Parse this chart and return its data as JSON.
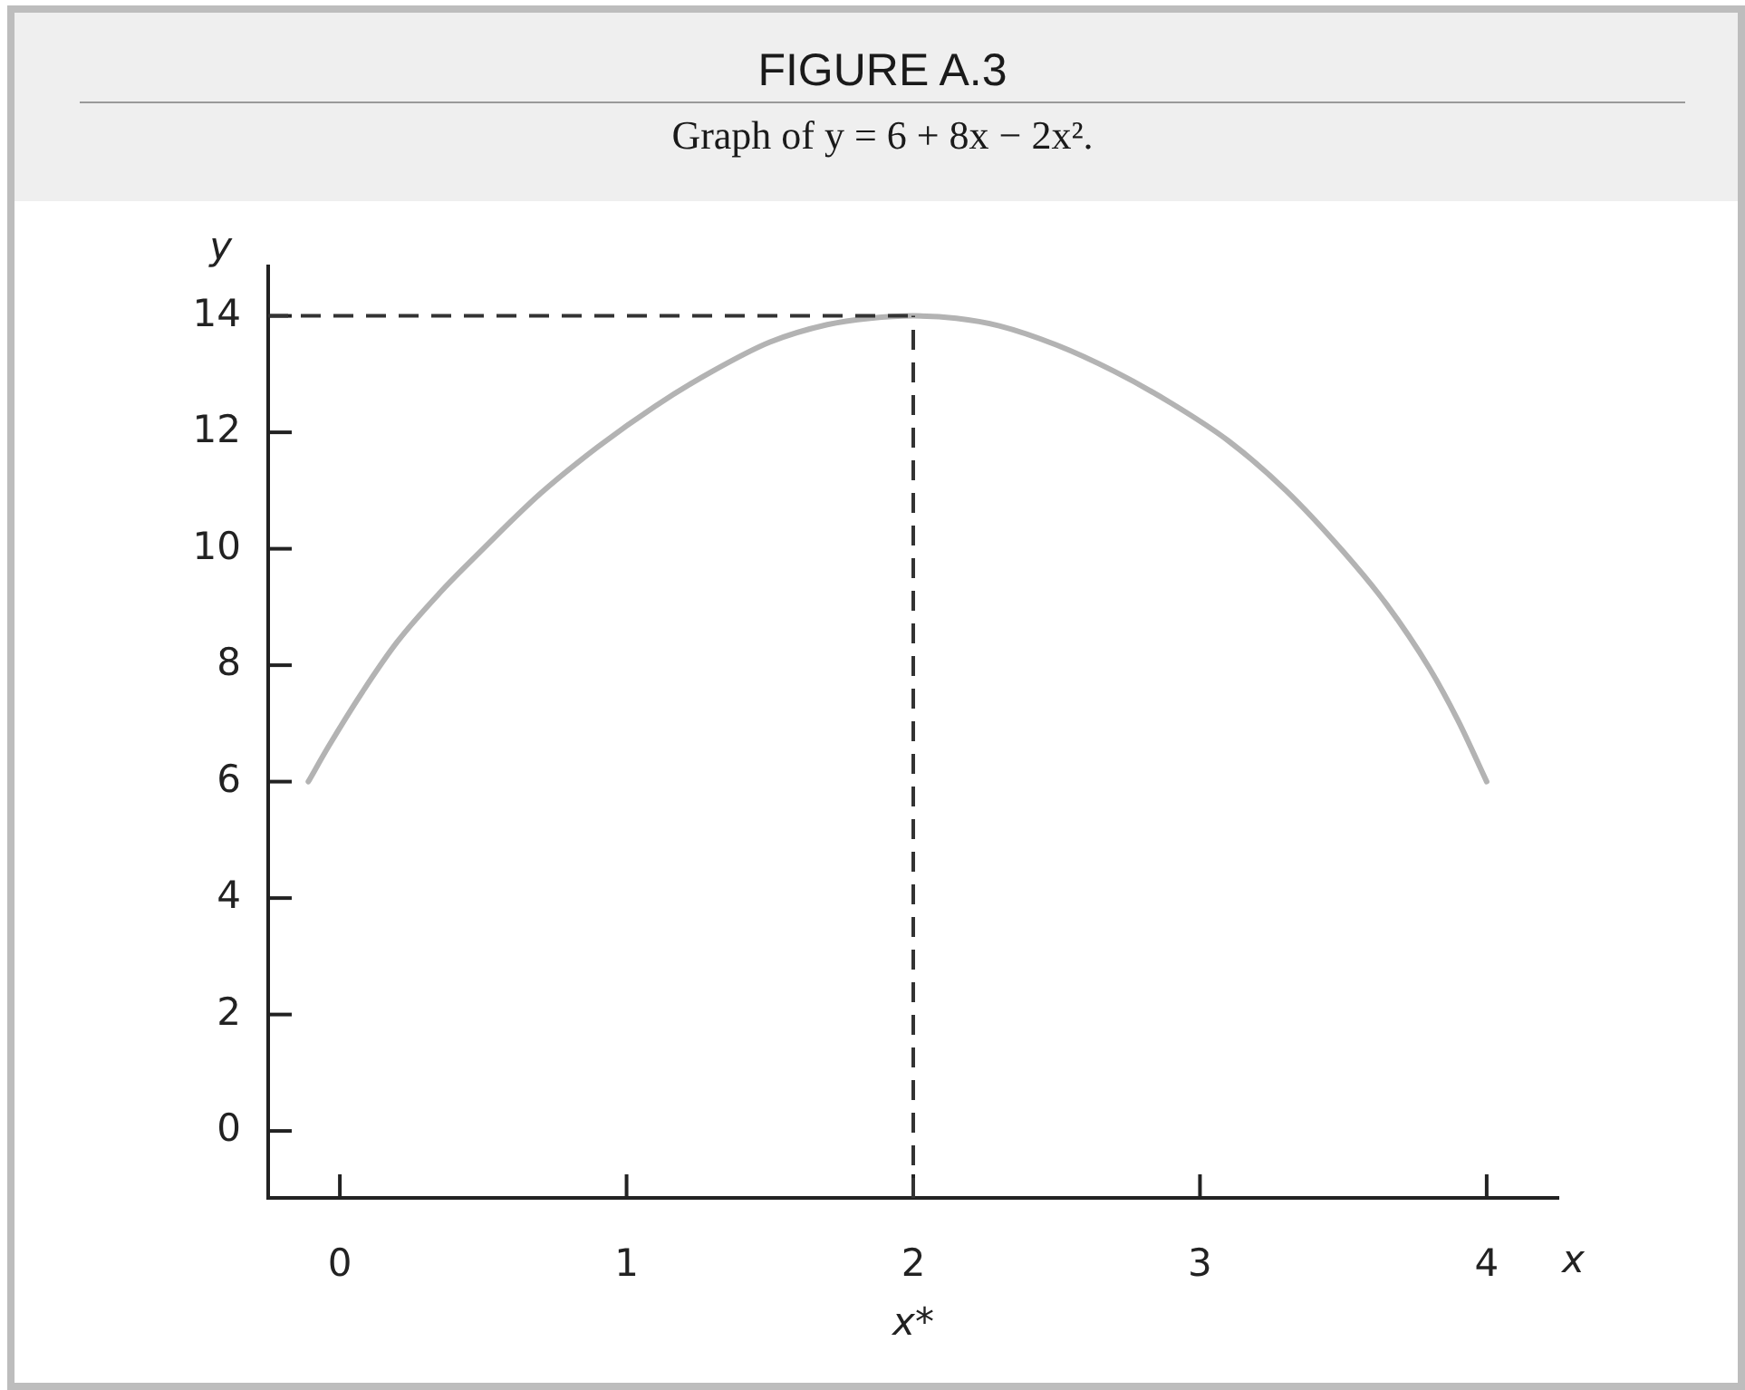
{
  "chart_data": {
    "type": "line",
    "title": "FIGURE A.3",
    "subtitle": "Graph of y = 6 + 8x − 2x².",
    "xlabel": "x",
    "ylabel": "y",
    "x": [
      -0.11,
      -0.04,
      0.08,
      0.2,
      0.35,
      0.5,
      0.7,
      0.9,
      1.1,
      1.3,
      1.5,
      1.7,
      1.85,
      2,
      2.15,
      2.3,
      2.5,
      2.7,
      2.9,
      3.1,
      3.3,
      3.5,
      3.65,
      3.8,
      3.9,
      4
    ],
    "values": [
      6,
      6.6,
      7.55,
      8.4,
      9.25,
      10,
      10.95,
      11.75,
      12.45,
      13.05,
      13.55,
      13.85,
      13.96,
      14,
      13.96,
      13.83,
      13.5,
      13.05,
      12.5,
      11.85,
      11,
      9.95,
      9.05,
      7.95,
      7.05,
      6
    ],
    "color": "#b3b3b3",
    "marker": "none",
    "line_style": "solid",
    "xlim": [
      -0.25,
      4.25
    ],
    "ylim": [
      -1.15,
      14.85
    ],
    "xticks": [
      0,
      1,
      2,
      3,
      4
    ],
    "yticks": [
      0,
      2,
      4,
      6,
      8,
      10,
      12,
      14
    ],
    "ref_lines": [
      {
        "axis": "y",
        "value": 14,
        "color": "#333333",
        "line_style": "dashed"
      },
      {
        "axis": "x",
        "value": 2,
        "label": "x*",
        "color": "#333333",
        "line_style": "dashed"
      }
    ]
  }
}
